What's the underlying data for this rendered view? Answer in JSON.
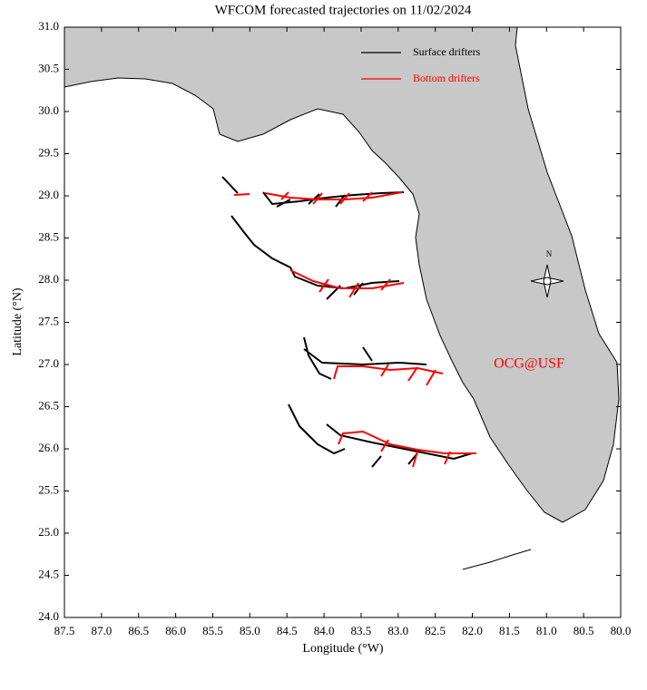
{
  "title": "WFCOM forecasted trajectories on 11/02/2024",
  "x_axis": {
    "label": "Longitude (°W)",
    "lim": [
      87.5,
      80.0
    ],
    "ticks": [
      {
        "value": 87.5,
        "label": "87.5"
      },
      {
        "value": 87,
        "label": "87.0"
      },
      {
        "value": 86.5,
        "label": "86.5"
      },
      {
        "value": 86,
        "label": "86.0"
      },
      {
        "value": 85.5,
        "label": "85.5"
      },
      {
        "value": 85,
        "label": "85.0"
      },
      {
        "value": 84.5,
        "label": "84.5"
      },
      {
        "value": 84,
        "label": "84.0"
      },
      {
        "value": 83.5,
        "label": "83.5"
      },
      {
        "value": 83,
        "label": "83.0"
      },
      {
        "value": 82.5,
        "label": "82.5"
      },
      {
        "value": 82,
        "label": "82.0"
      },
      {
        "value": 81.5,
        "label": "81.5"
      },
      {
        "value": 81,
        "label": "81.0"
      },
      {
        "value": 80.5,
        "label": "80.5"
      },
      {
        "value": 80,
        "label": "80.0"
      }
    ]
  },
  "y_axis": {
    "label": "Latitude (°N)",
    "lim": [
      24.0,
      31.0
    ],
    "ticks": [
      {
        "value": 24,
        "label": "24.0"
      },
      {
        "value": 24.5,
        "label": "24.5"
      },
      {
        "value": 25,
        "label": "25.0"
      },
      {
        "value": 25.5,
        "label": "25.5"
      },
      {
        "value": 26,
        "label": "26.0"
      },
      {
        "value": 26.5,
        "label": "26.5"
      },
      {
        "value": 27,
        "label": "27.0"
      },
      {
        "value": 27.5,
        "label": "27.5"
      },
      {
        "value": 28,
        "label": "28.0"
      },
      {
        "value": 28.5,
        "label": "28.5"
      },
      {
        "value": 29,
        "label": "29.0"
      },
      {
        "value": 29.5,
        "label": "29.5"
      },
      {
        "value": 30,
        "label": "30.0"
      },
      {
        "value": 30.5,
        "label": "30.5"
      },
      {
        "value": 31,
        "label": "31.0"
      }
    ]
  },
  "legend": [
    {
      "name": "Surface drifters",
      "color": "#000000"
    },
    {
      "name": "Bottom drifters",
      "color": "#ff0000"
    }
  ],
  "annotation": {
    "text": "OCG@USF",
    "color": "#ff0000"
  },
  "compass": "N"
}
